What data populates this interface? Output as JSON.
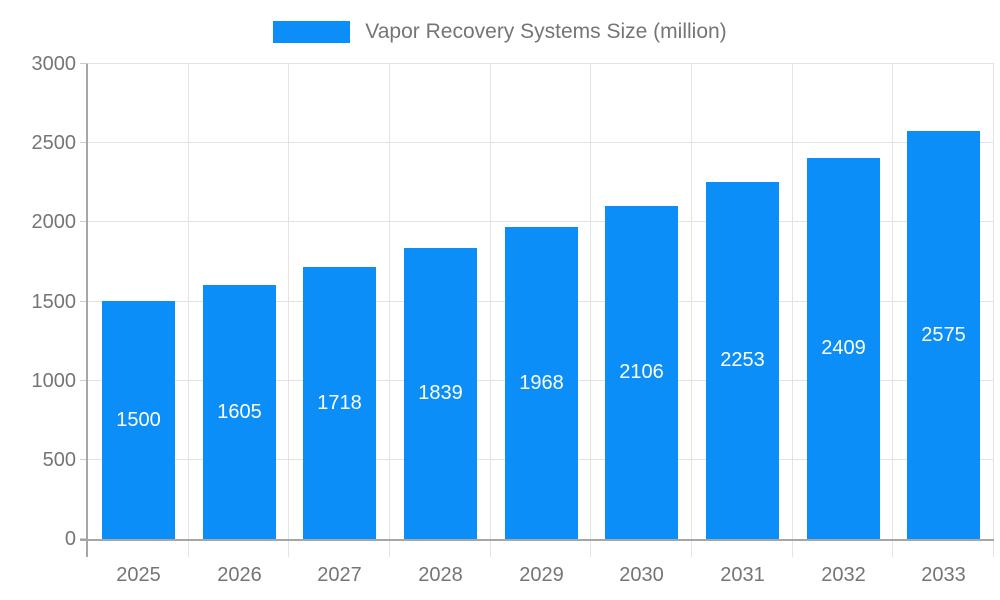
{
  "chart_data": {
    "type": "bar",
    "title": "Vapor Recovery Systems Size (million)",
    "categories": [
      "2025",
      "2026",
      "2027",
      "2028",
      "2029",
      "2030",
      "2031",
      "2032",
      "2033"
    ],
    "values": [
      1500,
      1605,
      1718,
      1839,
      1968,
      2106,
      2253,
      2409,
      2575
    ],
    "xlabel": "",
    "ylabel": "",
    "ylim": [
      0,
      3000
    ],
    "ytick_step": 500,
    "grid": true,
    "legend_position": "top-center",
    "value_labels": "inside-center",
    "colors": {
      "bar": "#0c8ef8",
      "value_label": "#ffffff",
      "axis_label": "#757575",
      "legend_label": "#757575",
      "gridline": "#e3e3e3",
      "axis_line": "#a6a6a6",
      "y_tick": "#cccccc",
      "background": "#ffffff"
    }
  }
}
